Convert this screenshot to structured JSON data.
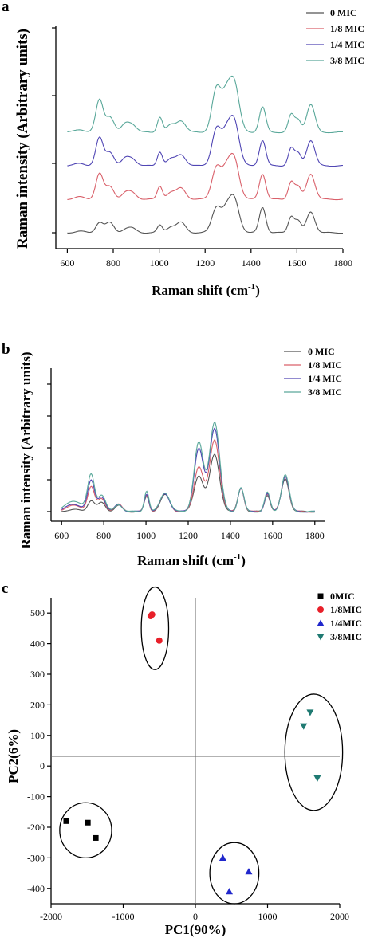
{
  "chart_data": [
    {
      "panel_label": "a",
      "type": "line",
      "xlabel": "Raman shift (cm",
      "xlabel_sup": "-1",
      "xlabel_close": ")",
      "ylabel": "Raman intensity (Arbitrary units)",
      "xlim": [
        550,
        1800
      ],
      "x_ticks": [
        "600",
        "800",
        "1000",
        "1200",
        "1400",
        "1600",
        "1800"
      ],
      "stacked": true,
      "legend_position": "top-right",
      "series": [
        {
          "name": "0 MIC",
          "color": "#555555",
          "offset": 0
        },
        {
          "name": "1/8 MIC",
          "color": "#d9606a",
          "offset": 1
        },
        {
          "name": "1/4 MIC",
          "color": "#5046b4",
          "offset": 2
        },
        {
          "name": "3/8 MIC",
          "color": "#5aa89a",
          "offset": 3
        }
      ],
      "peaks": [
        {
          "center": 655,
          "width": 22,
          "heights": [
            0.03,
            0.05,
            0.05,
            0.06
          ]
        },
        {
          "center": 740,
          "width": 16,
          "heights": [
            0.22,
            0.55,
            0.6,
            0.7
          ]
        },
        {
          "center": 785,
          "width": 18,
          "heights": [
            0.22,
            0.28,
            0.3,
            0.34
          ]
        },
        {
          "center": 850,
          "width": 16,
          "heights": [
            0.05,
            0.1,
            0.12,
            0.14
          ]
        },
        {
          "center": 880,
          "width": 20,
          "heights": [
            0.1,
            0.15,
            0.16,
            0.18
          ]
        },
        {
          "center": 1003,
          "width": 11,
          "heights": [
            0.16,
            0.28,
            0.3,
            0.33
          ]
        },
        {
          "center": 1050,
          "width": 18,
          "heights": [
            0.12,
            0.14,
            0.14,
            0.15
          ]
        },
        {
          "center": 1095,
          "width": 20,
          "heights": [
            0.22,
            0.24,
            0.24,
            0.25
          ]
        },
        {
          "center": 1250,
          "width": 20,
          "heights": [
            0.55,
            0.7,
            0.8,
            0.95
          ]
        },
        {
          "center": 1290,
          "width": 18,
          "heights": [
            0.35,
            0.45,
            0.5,
            0.6
          ]
        },
        {
          "center": 1325,
          "width": 22,
          "heights": [
            0.75,
            0.9,
            1.0,
            1.1
          ]
        },
        {
          "center": 1450,
          "width": 14,
          "heights": [
            0.55,
            0.55,
            0.55,
            0.55
          ]
        },
        {
          "center": 1575,
          "width": 13,
          "heights": [
            0.35,
            0.38,
            0.38,
            0.38
          ]
        },
        {
          "center": 1605,
          "width": 13,
          "heights": [
            0.25,
            0.26,
            0.26,
            0.26
          ]
        },
        {
          "center": 1660,
          "width": 18,
          "heights": [
            0.45,
            0.55,
            0.55,
            0.6
          ]
        }
      ]
    },
    {
      "panel_label": "b",
      "type": "line",
      "xlabel": "Raman shift (cm",
      "xlabel_sup": "-1",
      "xlabel_close": ")",
      "ylabel": "Raman intensity (Arbitrary units)",
      "xlim": [
        550,
        1850
      ],
      "x_ticks": [
        "600",
        "800",
        "1000",
        "1200",
        "1400",
        "1600",
        "1800"
      ],
      "stacked": false,
      "legend_position": "top-right",
      "series": [
        {
          "name": "0 MIC",
          "color": "#555555",
          "offset": 0
        },
        {
          "name": "1/8 MIC",
          "color": "#d9606a",
          "offset": 0
        },
        {
          "name": "1/4 MIC",
          "color": "#5046b4",
          "offset": 0
        },
        {
          "name": "3/8 MIC",
          "color": "#5aa89a",
          "offset": 0
        }
      ],
      "peaks": [
        {
          "center": 660,
          "width": 40,
          "heights": [
            0.03,
            0.1,
            0.12,
            0.18
          ]
        },
        {
          "center": 740,
          "width": 16,
          "heights": [
            0.18,
            0.4,
            0.5,
            0.6
          ]
        },
        {
          "center": 790,
          "width": 18,
          "heights": [
            0.15,
            0.22,
            0.25,
            0.28
          ]
        },
        {
          "center": 870,
          "width": 18,
          "heights": [
            0.1,
            0.12,
            0.12,
            0.12
          ]
        },
        {
          "center": 1003,
          "width": 11,
          "heights": [
            0.25,
            0.28,
            0.3,
            0.35
          ]
        },
        {
          "center": 1090,
          "width": 22,
          "heights": [
            0.28,
            0.3,
            0.3,
            0.32
          ]
        },
        {
          "center": 1250,
          "width": 22,
          "heights": [
            0.6,
            0.75,
            1.05,
            1.15
          ]
        },
        {
          "center": 1325,
          "width": 24,
          "heights": [
            0.95,
            1.2,
            1.4,
            1.5
          ]
        },
        {
          "center": 1450,
          "width": 14,
          "heights": [
            0.4,
            0.4,
            0.4,
            0.4
          ]
        },
        {
          "center": 1575,
          "width": 13,
          "heights": [
            0.28,
            0.3,
            0.3,
            0.32
          ]
        },
        {
          "center": 1660,
          "width": 18,
          "heights": [
            0.55,
            0.6,
            0.6,
            0.62
          ]
        }
      ]
    },
    {
      "panel_label": "c",
      "type": "scatter",
      "xlabel": "PC1(90%)",
      "ylabel": "PC2(6%)",
      "xlim": [
        -2000,
        2000
      ],
      "ylim": [
        -450,
        550
      ],
      "x_ticks": [
        "-2000",
        "-1000",
        "0",
        "1000",
        "2000"
      ],
      "y_ticks": [
        "-400",
        "-300",
        "-200",
        "-100",
        "0",
        "100",
        "200",
        "300",
        "400",
        "500"
      ],
      "legend_position": "top-right",
      "series": [
        {
          "name": "0MIC",
          "marker": "square",
          "color": "#000000",
          "points": [
            [
              -1790,
              -180
            ],
            [
              -1490,
              -185
            ],
            [
              -1380,
              -235
            ]
          ],
          "ellipse": {
            "cx": -1520,
            "cy": -210,
            "rx": 360,
            "ry": 90
          }
        },
        {
          "name": "1/8MIC",
          "marker": "circle",
          "color": "#e8202a",
          "points": [
            [
              -620,
              490
            ],
            [
              -600,
              495
            ],
            [
              -500,
              410
            ]
          ],
          "ellipse": {
            "cx": -560,
            "cy": 450,
            "rx": 190,
            "ry": 135
          }
        },
        {
          "name": "1/4MIC",
          "marker": "triangle-up",
          "color": "#2027cc",
          "points": [
            [
              380,
              -300
            ],
            [
              470,
              -410
            ],
            [
              740,
              -345
            ]
          ],
          "ellipse": {
            "cx": 540,
            "cy": -350,
            "rx": 340,
            "ry": 100
          }
        },
        {
          "name": "3/8MIC",
          "marker": "triangle-down",
          "color": "#1f7a72",
          "points": [
            [
              1500,
              130
            ],
            [
              1590,
              175
            ],
            [
              1690,
              -40
            ]
          ],
          "ellipse": {
            "cx": 1640,
            "cy": 45,
            "rx": 400,
            "ry": 190
          }
        }
      ]
    }
  ]
}
